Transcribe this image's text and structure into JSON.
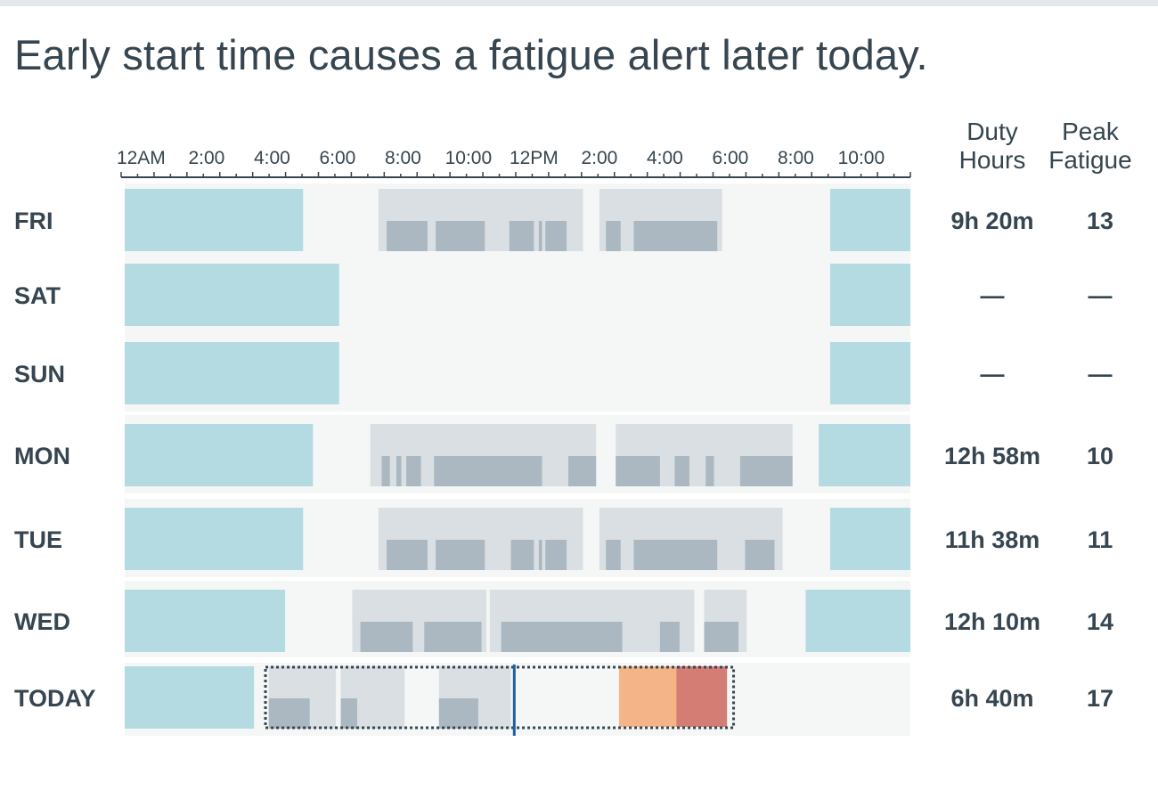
{
  "headline": "Early start time causes a fatigue alert later today.",
  "columns": {
    "duty_line1": "Duty",
    "duty_line2": "Hours",
    "fatigue_line1": "Peak",
    "fatigue_line2": "Fatigue"
  },
  "colors": {
    "sleep": "#b4dbe1",
    "duty_period": "#d9dfe2",
    "flight": "#abb8c1",
    "row_background": "#f5f7f7",
    "alert_moderate": "#f5b487",
    "alert_high": "#d47d75",
    "now_line": "#1f5f9e"
  },
  "chart_data": {
    "type": "timeline",
    "title": "Early start time causes a fatigue alert later today.",
    "x_axis": {
      "unit": "hours since midnight",
      "range": [
        0,
        24
      ],
      "tick_labels": [
        {
          "hour": 0.5,
          "label": "12AM"
        },
        {
          "hour": 2.5,
          "label": "2:00"
        },
        {
          "hour": 4.5,
          "label": "4:00"
        },
        {
          "hour": 6.5,
          "label": "6:00"
        },
        {
          "hour": 8.5,
          "label": "8:00"
        },
        {
          "hour": 10.5,
          "label": "10:00"
        },
        {
          "hour": 12.5,
          "label": "12PM"
        },
        {
          "hour": 14.5,
          "label": "2:00"
        },
        {
          "hour": 16.5,
          "label": "4:00"
        },
        {
          "hour": 18.5,
          "label": "6:00"
        },
        {
          "hour": 20.5,
          "label": "8:00"
        },
        {
          "hour": 22.5,
          "label": "10:00"
        }
      ]
    },
    "rows": [
      {
        "day": "FRI",
        "duty_hours": "9h 20m",
        "peak_fatigue": "13",
        "sleep": [
          [
            0,
            5.45
          ],
          [
            21.55,
            24
          ]
        ],
        "duty": [
          [
            7.75,
            14.0
          ],
          [
            14.5,
            18.25
          ]
        ],
        "flights": [
          [
            8.0,
            9.25
          ],
          [
            9.5,
            11.0
          ],
          [
            11.75,
            12.5
          ],
          [
            12.65,
            12.75
          ],
          [
            12.85,
            13.5
          ],
          [
            14.7,
            15.15
          ],
          [
            15.55,
            18.1
          ]
        ]
      },
      {
        "day": "SAT",
        "duty_hours": "—",
        "peak_fatigue": "—",
        "sleep": [
          [
            0,
            6.55
          ],
          [
            21.55,
            24
          ]
        ],
        "duty": [],
        "flights": []
      },
      {
        "day": "SUN",
        "duty_hours": "—",
        "peak_fatigue": "—",
        "sleep": [
          [
            0,
            6.55
          ],
          [
            21.55,
            24
          ]
        ],
        "duty": [],
        "flights": []
      },
      {
        "day": "MON",
        "duty_hours": "12h 58m",
        "peak_fatigue": "10",
        "sleep": [
          [
            0,
            5.75
          ],
          [
            21.2,
            24
          ]
        ],
        "duty": [
          [
            7.5,
            14.4
          ],
          [
            15.0,
            20.4
          ]
        ],
        "flights": [
          [
            7.85,
            8.1
          ],
          [
            8.3,
            8.45
          ],
          [
            8.6,
            9.05
          ],
          [
            9.45,
            12.75
          ],
          [
            13.55,
            14.4
          ],
          [
            15.0,
            16.35
          ],
          [
            16.8,
            17.25
          ],
          [
            17.75,
            18.0
          ],
          [
            18.8,
            20.4
          ]
        ]
      },
      {
        "day": "TUE",
        "duty_hours": "11h 38m",
        "peak_fatigue": "11",
        "sleep": [
          [
            0,
            5.45
          ],
          [
            21.55,
            24
          ]
        ],
        "duty": [
          [
            7.75,
            14.0
          ],
          [
            14.5,
            20.1
          ]
        ],
        "flights": [
          [
            8.0,
            9.25
          ],
          [
            9.5,
            11.0
          ],
          [
            11.8,
            12.5
          ],
          [
            12.65,
            12.75
          ],
          [
            12.85,
            13.5
          ],
          [
            14.7,
            15.15
          ],
          [
            15.55,
            18.1
          ],
          [
            18.95,
            19.85
          ]
        ]
      },
      {
        "day": "WED",
        "duty_hours": "12h 10m",
        "peak_fatigue": "14",
        "sleep": [
          [
            0,
            4.9
          ],
          [
            20.8,
            24
          ]
        ],
        "duty": [
          [
            6.95,
            11.05
          ],
          [
            11.15,
            17.4
          ],
          [
            17.7,
            19.0
          ]
        ],
        "flights": [
          [
            7.2,
            8.8
          ],
          [
            9.15,
            10.9
          ],
          [
            11.5,
            15.2
          ],
          [
            16.35,
            16.95
          ],
          [
            17.7,
            18.75
          ]
        ]
      },
      {
        "day": "TODAY",
        "duty_hours": "6h 40m",
        "peak_fatigue": "17",
        "sleep": [
          [
            0,
            3.95
          ]
        ],
        "duty": [
          [
            4.4,
            6.45
          ],
          [
            6.6,
            8.55
          ],
          [
            9.6,
            11.8
          ]
        ],
        "flights": [
          [
            4.4,
            5.65
          ],
          [
            6.6,
            7.1
          ],
          [
            9.6,
            10.8
          ]
        ],
        "now_hour": 11.9,
        "planned_window": [
          4.3,
          18.6
        ],
        "fatigue_alerts": [
          {
            "level": "moderate",
            "range": [
              15.1,
              16.85
            ]
          },
          {
            "level": "high",
            "range": [
              16.85,
              18.4
            ]
          }
        ]
      }
    ]
  }
}
